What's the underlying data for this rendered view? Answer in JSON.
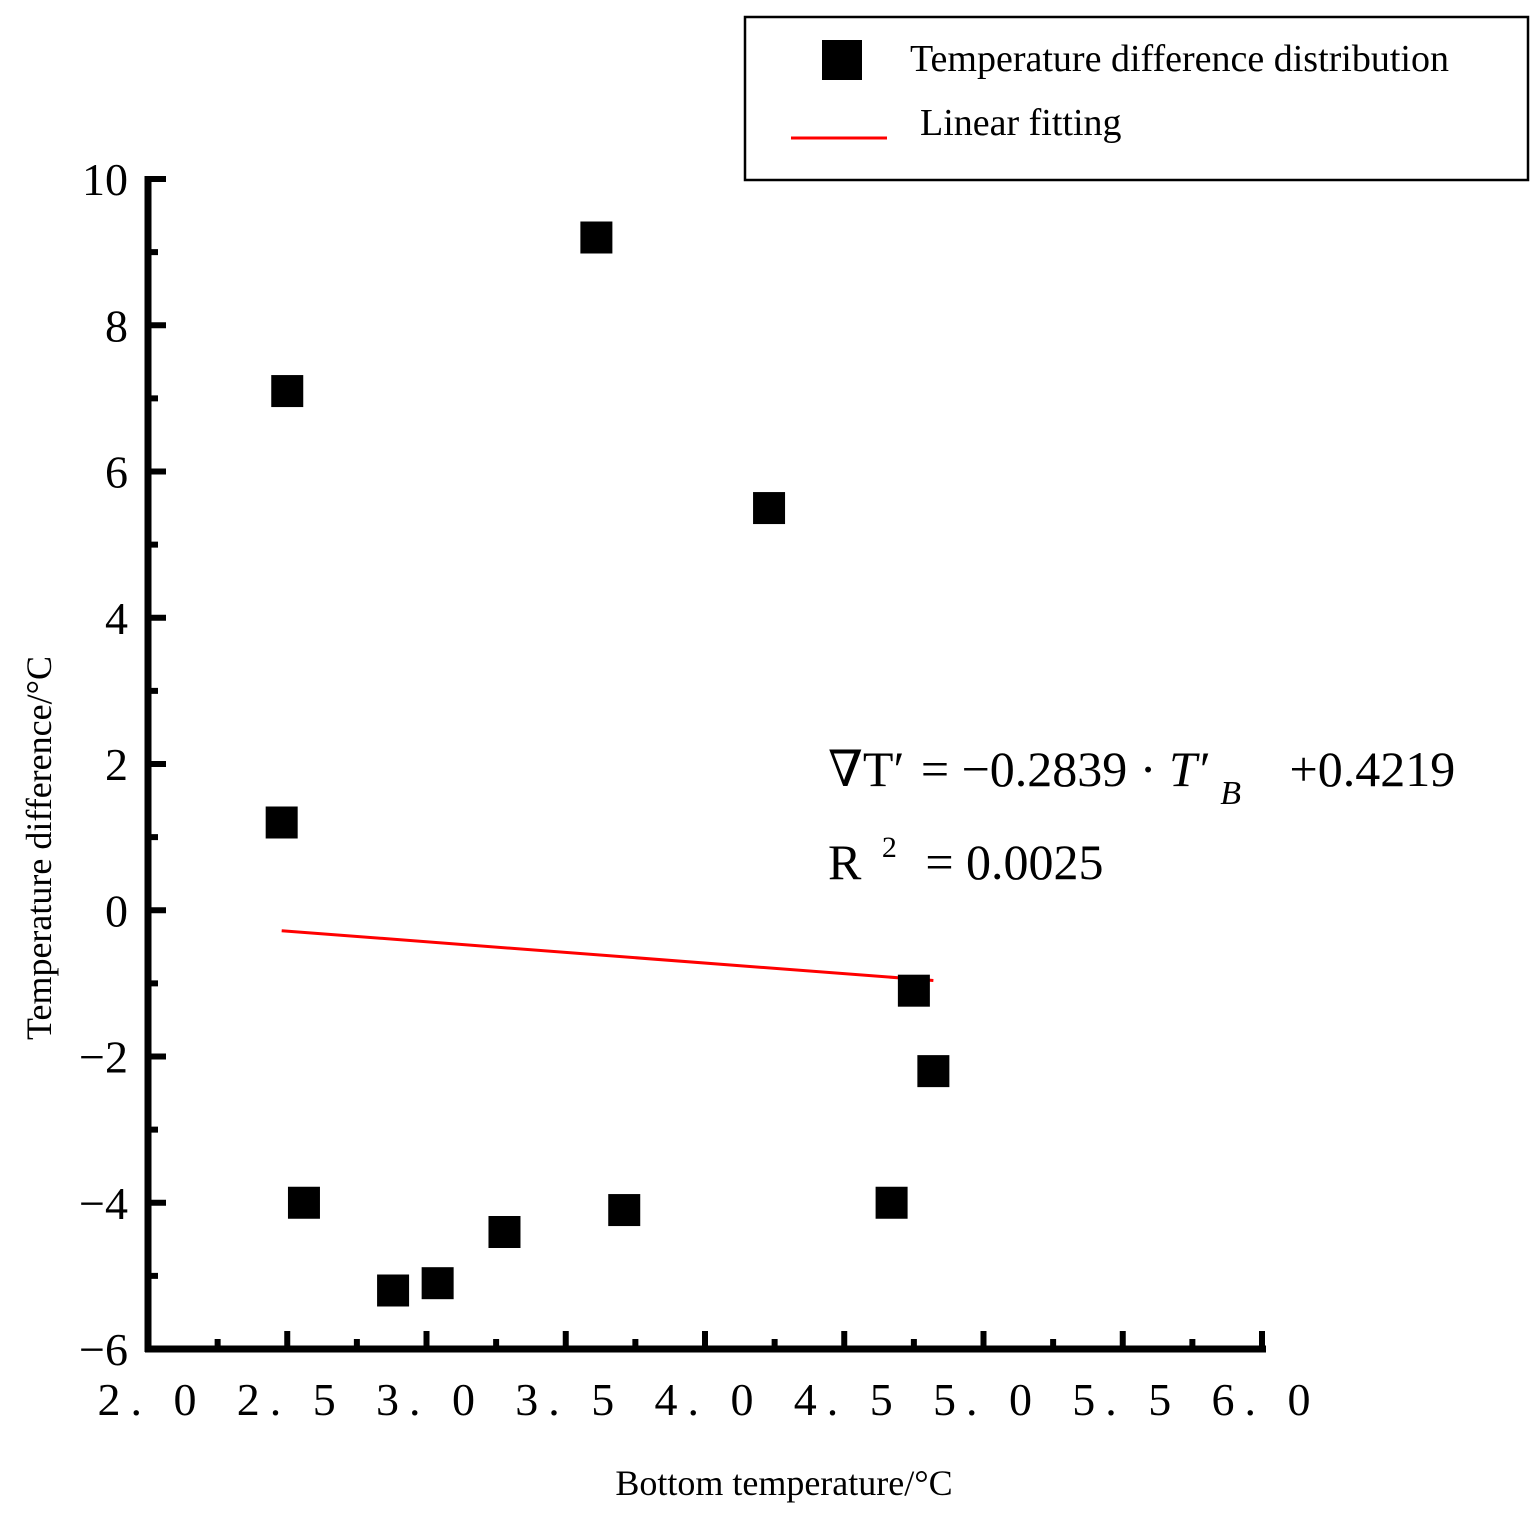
{
  "chart_data": {
    "type": "scatter",
    "xlabel": "Bottom temperature/°C",
    "ylabel": "Temperature difference/°C",
    "xlim": [
      2.0,
      6.0
    ],
    "ylim": [
      -6,
      10
    ],
    "x_ticks": [
      2.0,
      2.5,
      3.0,
      3.5,
      4.0,
      4.5,
      5.0,
      5.5,
      6.0
    ],
    "x_tick_labels": [
      "2. 0",
      "2. 5",
      "3. 0",
      "3. 5",
      "4. 0",
      "4. 5",
      "5. 0",
      "5. 5",
      "6. 0"
    ],
    "y_ticks": [
      -6,
      -4,
      -2,
      0,
      2,
      4,
      6,
      8,
      10
    ],
    "y_tick_labels": [
      "−6",
      "−4",
      "−2",
      "0",
      "2",
      "4",
      "6",
      "8",
      "10"
    ],
    "legend": {
      "placement": "top-right",
      "scatter_label": "Temperature difference distribution",
      "line_label": "Linear fitting"
    },
    "series": [
      {
        "name": "Temperature difference distribution",
        "kind": "scatter",
        "color": "#000000",
        "points": [
          {
            "x": 2.48,
            "y": 1.2
          },
          {
            "x": 2.5,
            "y": 7.1
          },
          {
            "x": 2.56,
            "y": -4.0
          },
          {
            "x": 2.88,
            "y": -5.2
          },
          {
            "x": 3.04,
            "y": -5.1
          },
          {
            "x": 3.28,
            "y": -4.4
          },
          {
            "x": 3.61,
            "y": 9.2
          },
          {
            "x": 3.71,
            "y": -4.1
          },
          {
            "x": 4.23,
            "y": 5.5
          },
          {
            "x": 4.67,
            "y": -4.0
          },
          {
            "x": 4.75,
            "y": -1.1
          },
          {
            "x": 4.82,
            "y": -2.2
          }
        ]
      },
      {
        "name": "Linear fitting",
        "kind": "line",
        "color": "#ff0000",
        "points": [
          {
            "x": 2.48,
            "y": -0.28
          },
          {
            "x": 4.82,
            "y": -0.96
          }
        ]
      }
    ],
    "annotation": {
      "equation": {
        "lhs": "∇T′",
        "eq": "=",
        "coef": "−0.2839 · ",
        "var": "T′",
        "sub": "B",
        "const": "+0.4219"
      },
      "r2": {
        "r": "R",
        "sup": "2",
        "value": "= 0.0025"
      }
    }
  }
}
